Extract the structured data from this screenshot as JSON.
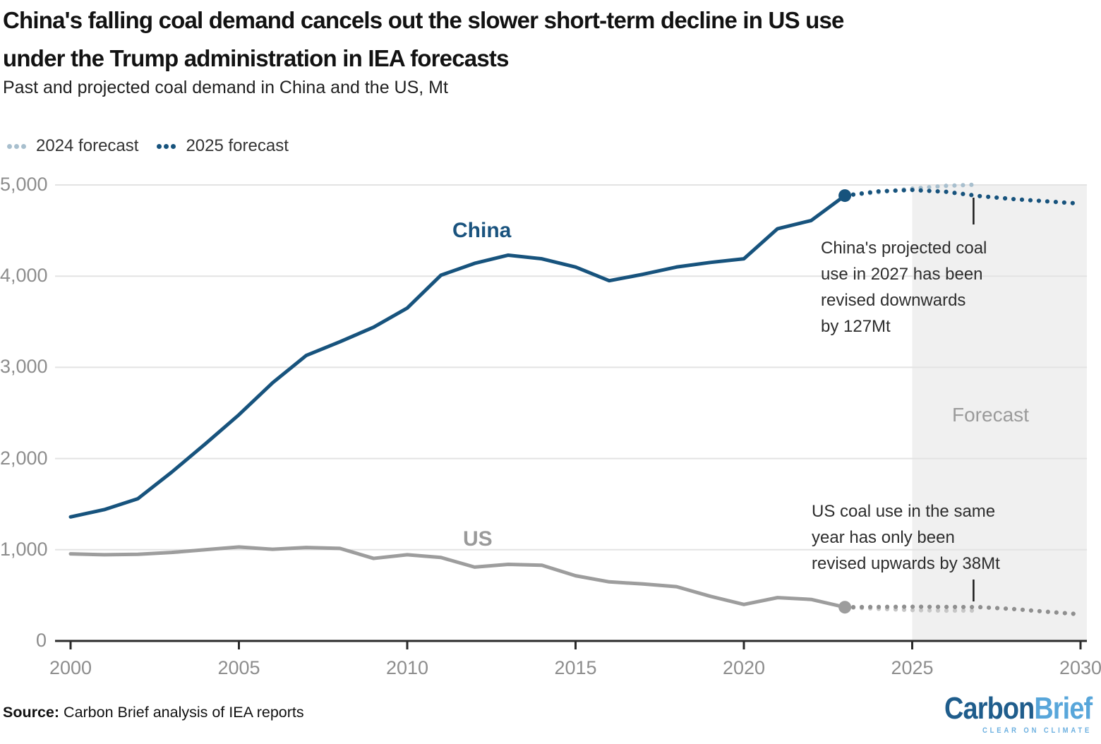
{
  "header": {
    "title_lines": [
      "China's falling coal demand cancels out the slower short-term decline in US use",
      "under the Trump administration in IEA forecasts"
    ],
    "subtitle": "Past and projected coal demand in China and the US, Mt"
  },
  "legend": {
    "items": [
      {
        "label": "2024 forecast",
        "color": "#a8bfce"
      },
      {
        "label": "2025 forecast",
        "color": "#17537d"
      }
    ]
  },
  "chart_data": {
    "type": "line",
    "unit": "Mt",
    "title": "Past and projected coal demand in China and the US, Mt",
    "x_axis": {
      "range": [
        2000,
        2030
      ],
      "ticks": [
        2000,
        2005,
        2010,
        2015,
        2020,
        2025,
        2030
      ]
    },
    "y_axis": {
      "range": [
        0,
        5000
      ],
      "ticks": [
        0,
        1000,
        2000,
        3000,
        4000,
        5000
      ],
      "tick_labels": [
        "0",
        "1,000",
        "2,000",
        "3,000",
        "4,000",
        "5,000"
      ]
    },
    "forecast_band": {
      "start_year": 2025,
      "end_year": 2030,
      "label": "Forecast",
      "color": "#f0f0f0"
    },
    "grid_color": "#e3e3e3",
    "axis_color": "#2b2b2b",
    "series": [
      {
        "name": "US 2024 forecast",
        "style": "dotted",
        "color": "#c7c7c7",
        "years": [
          2023,
          2024,
          2025,
          2026,
          2027
        ],
        "values": [
          370,
          352,
          338,
          332,
          333
        ]
      },
      {
        "name": "US 2025 forecast",
        "style": "dotted",
        "color": "#8f8f8f",
        "years": [
          2023,
          2024,
          2025,
          2026,
          2027,
          2028,
          2029,
          2030
        ],
        "values": [
          370,
          373,
          375,
          373,
          371,
          350,
          320,
          292
        ]
      },
      {
        "name": "China 2024 forecast",
        "style": "dotted",
        "color": "#a8bfce",
        "years": [
          2023,
          2024,
          2025,
          2026,
          2027
        ],
        "values": [
          4883,
          4920,
          4960,
          4990,
          5005
        ]
      },
      {
        "name": "China 2025 forecast",
        "style": "dotted",
        "color": "#17537d",
        "years": [
          2023,
          2024,
          2025,
          2026,
          2027,
          2028,
          2029,
          2030
        ],
        "values": [
          4883,
          4930,
          4945,
          4925,
          4878,
          4845,
          4820,
          4795
        ]
      },
      {
        "name": "US",
        "style": "solid",
        "color": "#9d9d9d",
        "years": [
          2000,
          2001,
          2002,
          2003,
          2004,
          2005,
          2006,
          2007,
          2008,
          2009,
          2010,
          2011,
          2012,
          2013,
          2014,
          2015,
          2016,
          2017,
          2018,
          2019,
          2020,
          2021,
          2022,
          2023
        ],
        "values": [
          955,
          945,
          950,
          970,
          1000,
          1030,
          1005,
          1025,
          1015,
          905,
          945,
          915,
          810,
          840,
          830,
          715,
          648,
          625,
          595,
          490,
          400,
          475,
          455,
          370
        ]
      },
      {
        "name": "China",
        "style": "solid",
        "color": "#17537d",
        "years": [
          2000,
          2001,
          2002,
          2003,
          2004,
          2005,
          2006,
          2007,
          2008,
          2009,
          2010,
          2011,
          2012,
          2013,
          2014,
          2015,
          2016,
          2017,
          2018,
          2019,
          2020,
          2021,
          2022,
          2023
        ],
        "values": [
          1360,
          1440,
          1560,
          1850,
          2160,
          2480,
          2830,
          3130,
          3280,
          3440,
          3650,
          4010,
          4140,
          4230,
          4190,
          4100,
          3950,
          4020,
          4100,
          4150,
          4190,
          4520,
          4610,
          4883
        ]
      }
    ],
    "end_markers": [
      {
        "series": "China",
        "year": 2023,
        "value": 4883,
        "color": "#17537d"
      },
      {
        "series": "US",
        "year": 2023,
        "value": 370,
        "color": "#9d9d9d"
      }
    ]
  },
  "series_labels": {
    "china": "China",
    "us": "US"
  },
  "forecast_label": "Forecast",
  "annotations": {
    "china": {
      "lines": [
        "China's projected coal",
        "use in 2027 has been",
        "revised downwards",
        "by 127Mt"
      ],
      "pointer_year": 2027
    },
    "us": {
      "lines": [
        "US coal use in the same",
        "year has only been",
        "revised upwards by 38Mt"
      ],
      "pointer_year": 2027
    }
  },
  "source": {
    "label": "Source:",
    "text": " Carbon Brief analysis of IEA reports"
  },
  "logo": {
    "part1": "Carbon",
    "part2": "Brief",
    "tagline": "CLEAR ON CLIMATE"
  }
}
